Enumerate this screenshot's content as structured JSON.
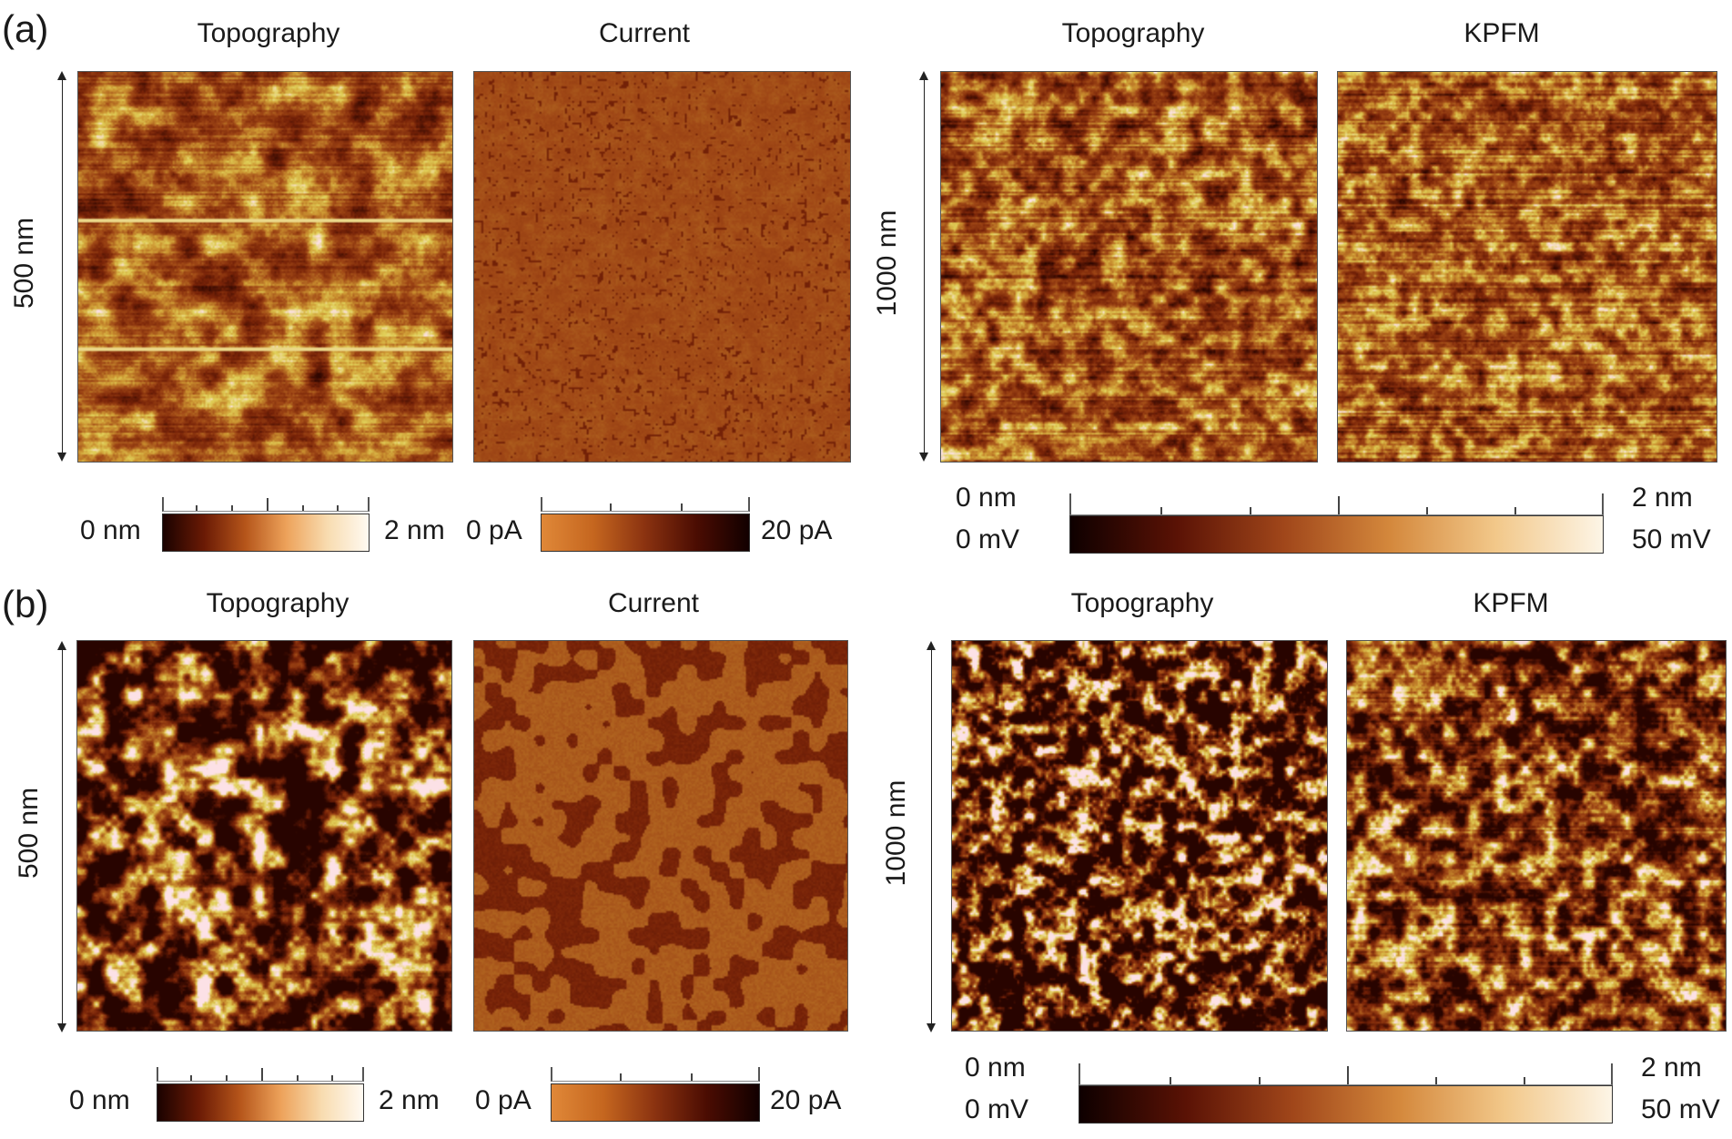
{
  "figure": {
    "a": {
      "letter": "(a)",
      "titles": [
        "Topography",
        "Current",
        "Topography",
        "KPFM"
      ],
      "left_scale": "500 nm",
      "right_scale": "1000 nm",
      "cbar_topo": {
        "min": "0 nm",
        "max": "2 nm"
      },
      "cbar_current": {
        "min": "0 pA",
        "max": "20 pA"
      },
      "cbar_right": {
        "min_top": "0 nm",
        "min_bottom": "0 mV",
        "max_top": "2 nm",
        "max_bottom": "50 mV"
      }
    },
    "b": {
      "letter": "(b)",
      "titles": [
        "Topography",
        "Current",
        "Topography",
        "KPFM"
      ],
      "left_scale": "500 nm",
      "right_scale": "1000 nm",
      "cbar_topo": {
        "min": "0 nm",
        "max": "2 nm"
      },
      "cbar_current": {
        "min": "0 pA",
        "max": "20 pA"
      },
      "cbar_right": {
        "min_top": "0 nm",
        "min_bottom": "0 mV",
        "max_top": "2 nm",
        "max_bottom": "50 mV"
      }
    }
  },
  "colors": {
    "afm_dark": "#2a0500",
    "afm_mid": "#a0461a",
    "afm_light": "#e8c078",
    "afm_white": "#fffdf5"
  }
}
